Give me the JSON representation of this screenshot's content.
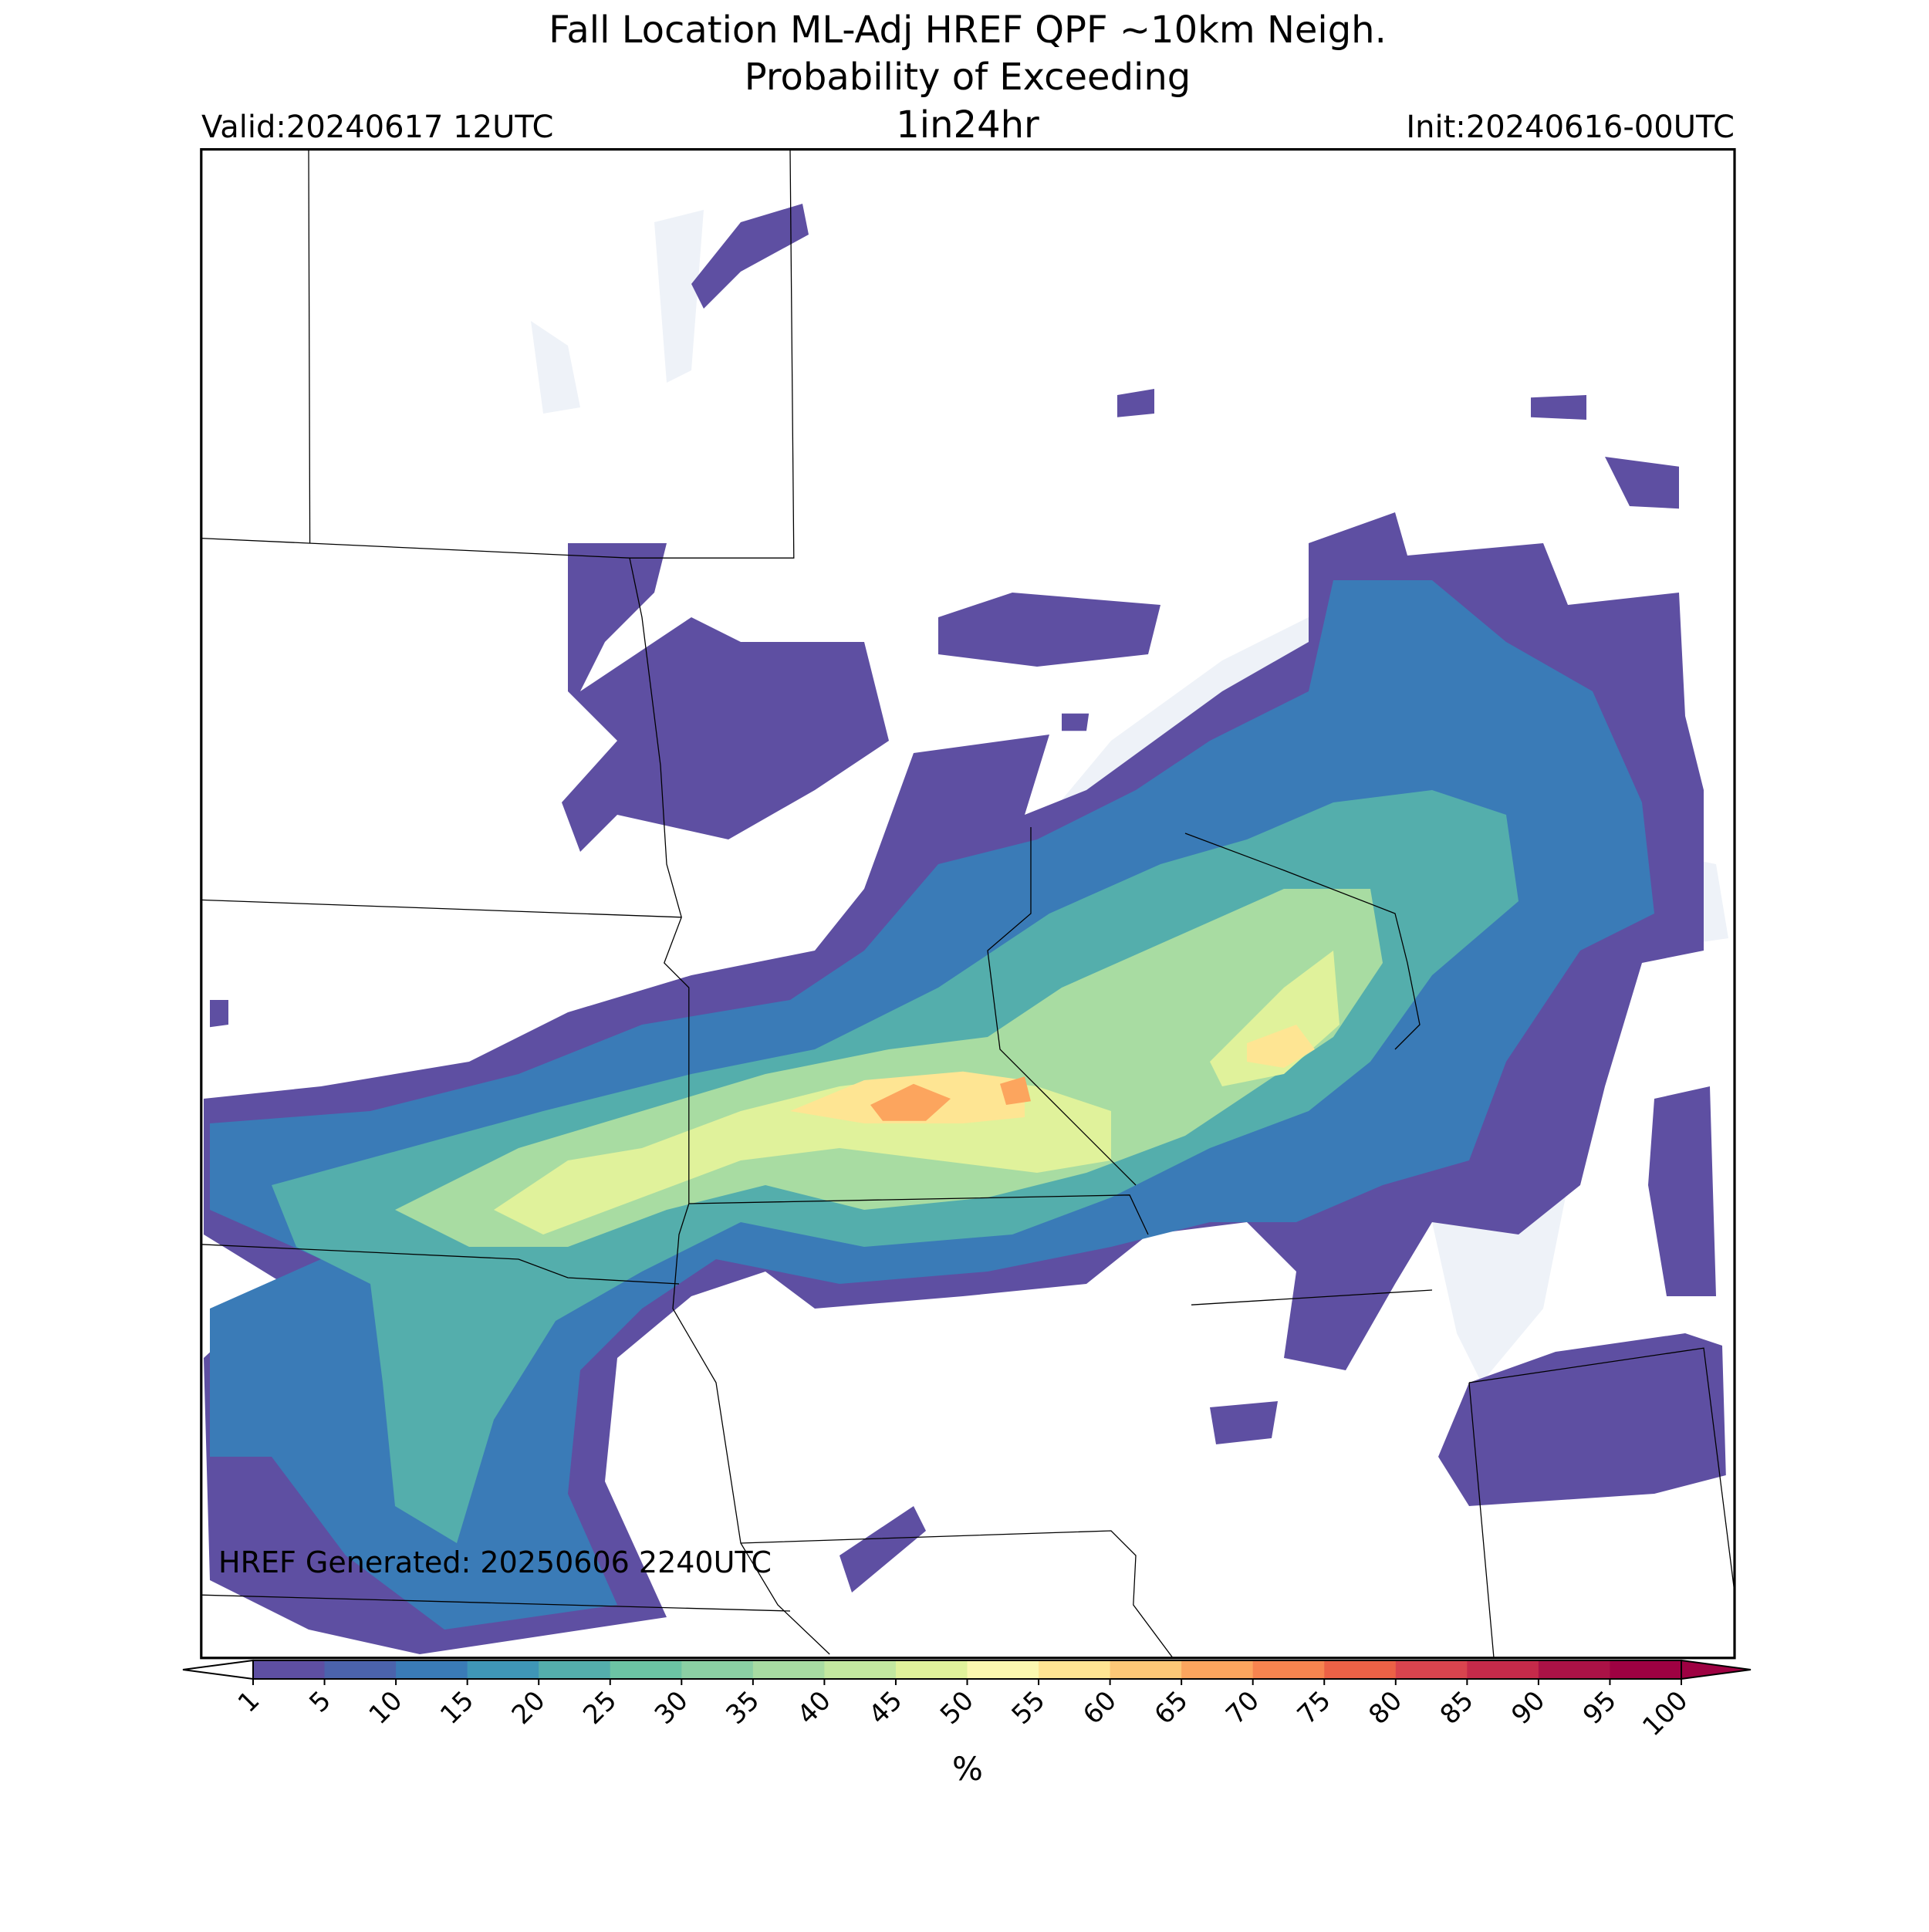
{
  "header": {
    "title_lines": [
      "Fall Location ML-Adj HREF QPF ~10km Neigh.",
      "Probability of Exceeding"
    ],
    "valid": "Valid:20240617 12UTC",
    "threshold": "1in24hr",
    "init": "Init:20240616-00UTC"
  },
  "annotation": "HREF Generated: 20250606 2240UTC",
  "colorbar": {
    "label": "%",
    "ticks": [
      1,
      5,
      10,
      15,
      20,
      25,
      30,
      35,
      40,
      45,
      50,
      55,
      60,
      65,
      70,
      75,
      80,
      85,
      90,
      95,
      100
    ],
    "colors": [
      "#5e4fa2",
      "#4b63ac",
      "#3a7bb7",
      "#3f96b7",
      "#54aeac",
      "#6cc4a4",
      "#8bd0a4",
      "#a8dca2",
      "#c3e8a0",
      "#e0f29b",
      "#fbf8b0",
      "#fee593",
      "#fdc877",
      "#fca55e",
      "#f7844f",
      "#ec6146",
      "#d9444e",
      "#c52a4a",
      "#aa1246",
      "#9e0142"
    ]
  }
}
